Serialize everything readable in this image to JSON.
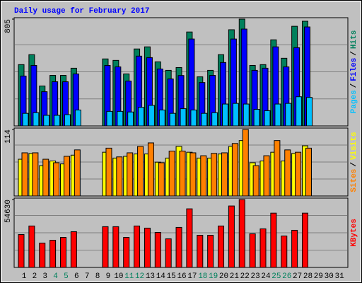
{
  "chart_data": [
    {
      "type": "bar",
      "title": "Daily usage for February 2017",
      "categories": [
        "1",
        "2",
        "3",
        "4",
        "5",
        "6",
        "7",
        "8",
        "9",
        "10",
        "11",
        "12",
        "13",
        "14",
        "15",
        "16",
        "17",
        "18",
        "19",
        "20",
        "21",
        "22",
        "23",
        "24",
        "25",
        "26",
        "27",
        "28",
        "29",
        "30",
        "31"
      ],
      "series": [
        {
          "name": "Hits",
          "color": "#00805c",
          "values": [
            462,
            537,
            301,
            381,
            381,
            435,
            null,
            null,
            505,
            494,
            392,
            580,
            596,
            483,
            419,
            440,
            708,
            370,
            419,
            537,
            725,
            805,
            456,
            462,
            649,
            510,
            751,
            789,
            null,
            null,
            null
          ]
        },
        {
          "name": "Files",
          "color": "#0000ff",
          "values": [
            376,
            456,
            258,
            333,
            333,
            392,
            null,
            null,
            456,
            445,
            338,
            526,
            515,
            429,
            354,
            380,
            655,
            327,
            381,
            478,
            655,
            730,
            419,
            435,
            596,
            445,
            590,
            746,
            null,
            null,
            null
          ]
        },
        {
          "name": "Pages",
          "color": "#00c0ff",
          "values": [
            95,
            100,
            80,
            80,
            85,
            120,
            null,
            null,
            110,
            110,
            105,
            140,
            155,
            120,
            95,
            130,
            120,
            95,
            100,
            165,
            170,
            165,
            125,
            115,
            165,
            170,
            220,
            215,
            null,
            null,
            null
          ]
        }
      ],
      "label_separator": "/",
      "ylim": [
        0,
        805
      ],
      "yticks": [
        805
      ]
    },
    {
      "type": "bar",
      "categories": [
        "1",
        "2",
        "3",
        "4",
        "5",
        "6",
        "7",
        "8",
        "9",
        "10",
        "11",
        "12",
        "13",
        "14",
        "15",
        "16",
        "17",
        "18",
        "19",
        "20",
        "21",
        "22",
        "23",
        "24",
        "25",
        "26",
        "27",
        "28",
        "29",
        "30",
        "31"
      ],
      "series": [
        {
          "name": "Visits",
          "color": "#ffff00",
          "values": [
            63,
            73,
            52,
            60,
            55,
            70,
            null,
            null,
            75,
            65,
            68,
            72,
            72,
            58,
            65,
            85,
            75,
            65,
            65,
            72,
            85,
            95,
            57,
            60,
            75,
            60,
            73,
            86,
            null,
            null,
            null
          ]
        },
        {
          "name": "Sites",
          "color": "#ff8000",
          "values": [
            74,
            74,
            63,
            57,
            68,
            79,
            null,
            null,
            82,
            67,
            74,
            85,
            91,
            57,
            77,
            77,
            74,
            69,
            73,
            74,
            90,
            114,
            52,
            69,
            95,
            79,
            75,
            82,
            null,
            null,
            null
          ]
        }
      ],
      "label_separator": "/",
      "ylim": [
        0,
        114
      ],
      "yticks": [
        114
      ]
    },
    {
      "type": "bar",
      "categories": [
        "1",
        "2",
        "3",
        "4",
        "5",
        "6",
        "7",
        "8",
        "9",
        "10",
        "11",
        "12",
        "13",
        "14",
        "15",
        "16",
        "17",
        "18",
        "19",
        "20",
        "21",
        "22",
        "23",
        "24",
        "25",
        "26",
        "27",
        "28",
        "29",
        "30",
        "31"
      ],
      "series": [
        {
          "name": "KBytes",
          "color": "#ff0000",
          "values": [
            26450,
            33350,
            19550,
            21850,
            24150,
            28750,
            null,
            null,
            32780,
            32780,
            24150,
            33350,
            31630,
            28180,
            23000,
            32200,
            47150,
            25880,
            25880,
            33350,
            49450,
            54630,
            27030,
            31050,
            43700,
            25300,
            29900,
            43700,
            null,
            null,
            null
          ]
        }
      ],
      "ylim": [
        0,
        54630
      ],
      "yticks": [
        54630
      ],
      "weekend_color": "#00805c",
      "weekends": [
        "4",
        "5",
        "11",
        "12",
        "18",
        "19",
        "25",
        "26"
      ]
    }
  ]
}
